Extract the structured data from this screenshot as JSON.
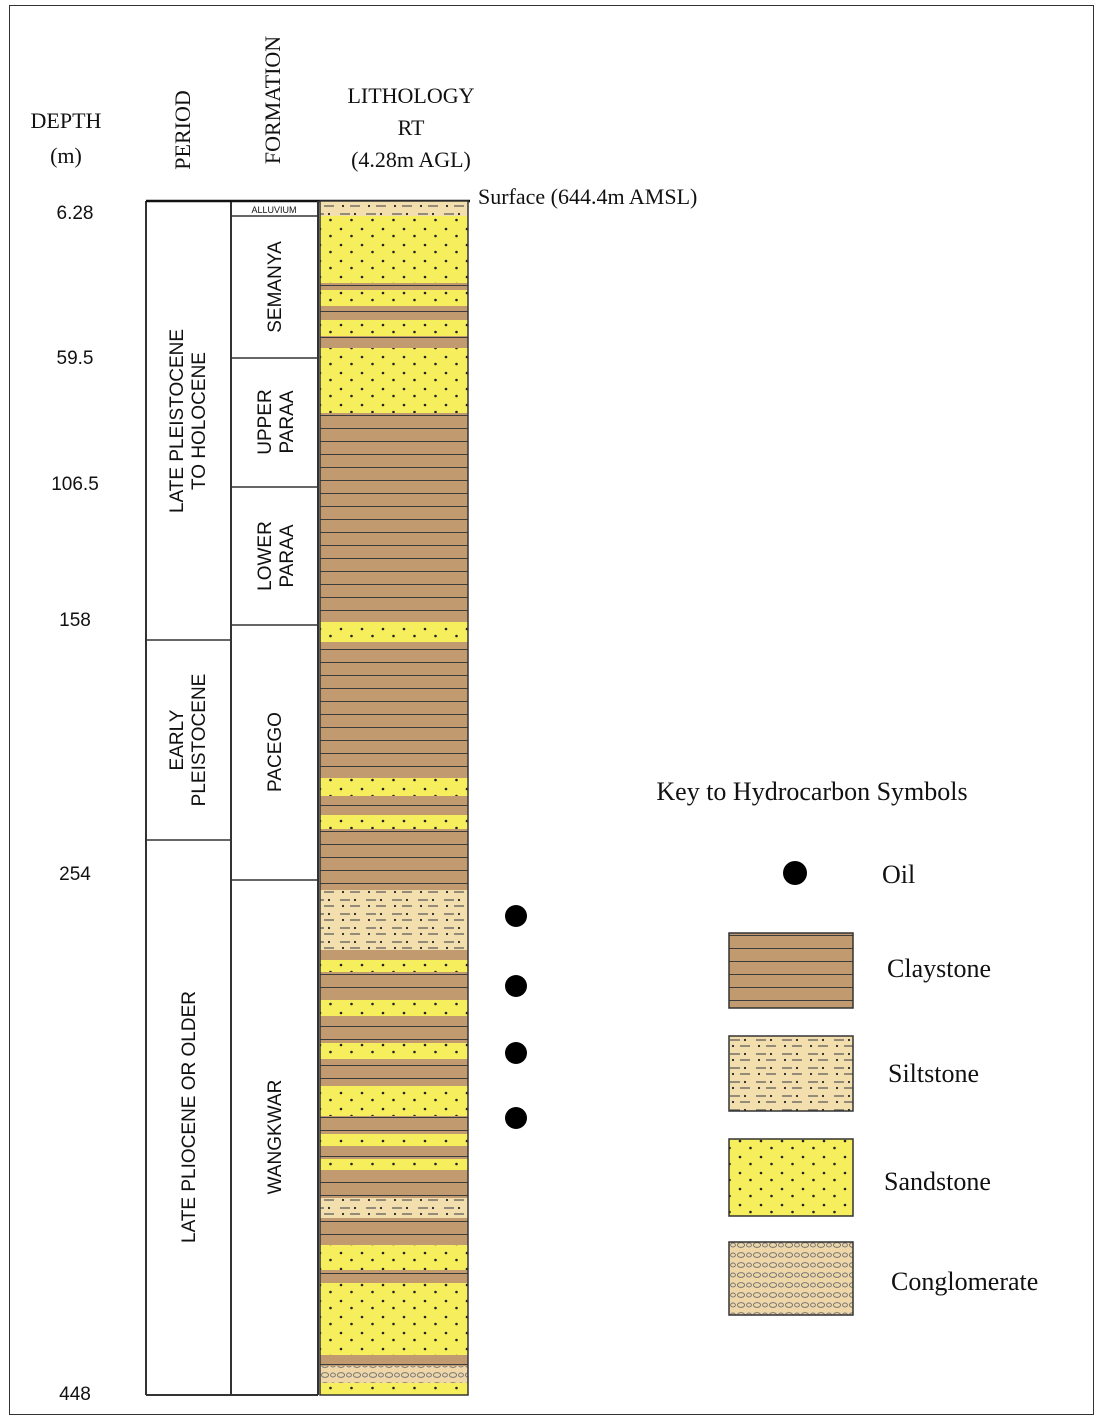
{
  "headers": {
    "depth_line1": "DEPTH",
    "depth_line2": "(m)",
    "period": "PERIOD",
    "formation": "FORMATION",
    "lithology_line1": "LITHOLOGY",
    "lithology_line2": "RT",
    "lithology_line3": "(4.28m AGL)"
  },
  "surface_label": "Surface (644.4m AMSL)",
  "depths": [
    "6.28",
    "59.5",
    "106.5",
    "158",
    "254",
    "448"
  ],
  "periods": [
    {
      "lines": [
        "LATE PLEISTOCENE",
        "TO HOLOCENE"
      ]
    },
    {
      "lines": [
        "EARLY",
        "PLEISTOCENE"
      ]
    },
    {
      "lines": [
        "LATE PLIOCENE OR OLDER"
      ]
    }
  ],
  "formations": [
    {
      "lines": [
        "ALLUVIUM"
      ]
    },
    {
      "lines": [
        "SEMANYA"
      ]
    },
    {
      "lines": [
        "UPPER",
        "PARAA"
      ]
    },
    {
      "lines": [
        "LOWER",
        "PARAA"
      ]
    },
    {
      "lines": [
        "PACEGO"
      ]
    },
    {
      "lines": [
        "WANGKWAR"
      ]
    }
  ],
  "lithology_layers": [
    "siltstone",
    "sandstone",
    "claystone",
    "sandstone",
    "claystone",
    "sandstone",
    "claystone",
    "sandstone",
    "claystone",
    "sandstone",
    "claystone",
    "sandstone",
    "claystone",
    "sandstone",
    "claystone",
    "siltstone",
    "claystone",
    "sandstone",
    "claystone",
    "sandstone",
    "claystone",
    "sandstone",
    "claystone",
    "sandstone",
    "claystone",
    "sandstone",
    "claystone",
    "sandstone",
    "claystone",
    "siltstone",
    "claystone",
    "sandstone",
    "claystone",
    "sandstone",
    "claystone",
    "conglomerate",
    "sandstone",
    "claystone"
  ],
  "oil_shows_count": 4,
  "key": {
    "title": "Key to Hydrocarbon Symbols",
    "items": [
      {
        "symbol": "oil",
        "label": "Oil"
      },
      {
        "symbol": "claystone",
        "label": "Claystone"
      },
      {
        "symbol": "siltstone",
        "label": "Siltstone"
      },
      {
        "symbol": "sandstone",
        "label": "Sandstone"
      },
      {
        "symbol": "conglomerate",
        "label": "Conglomerate"
      }
    ]
  },
  "colors": {
    "claystone": "#c29a6f",
    "sandstone": "#f6ee5c",
    "siltstone": "#f3dfae",
    "conglomerate": "#f0d7a8",
    "line": "#333333"
  }
}
